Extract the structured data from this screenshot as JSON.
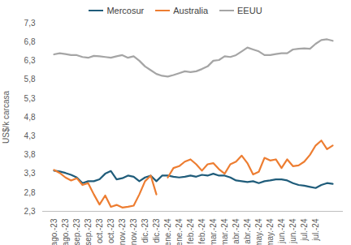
{
  "chart_data": {
    "type": "line",
    "ylabel": "US$/k carcasa",
    "legend": "top",
    "grid": false,
    "categories": [
      "ago.-23",
      null,
      "ago.-23",
      null,
      "sep.-23",
      null,
      "sep.-23",
      null,
      "oct.-23",
      null,
      "oct.-23",
      null,
      "nov.-23",
      null,
      "nov.-23",
      null,
      "dic.-23",
      null,
      "dic.-23",
      null,
      "ene.-24",
      null,
      "ene.-24",
      null,
      "feb.-24",
      null,
      "feb.-24",
      null,
      "mar.-24",
      null,
      "mar.-24",
      null,
      "abr.-24",
      null,
      "abr.-24",
      null,
      "may.-24",
      null,
      "may.-24",
      null,
      "jun.-24",
      null,
      "jun.-24",
      null,
      "jul.-24",
      null,
      "jul.-24",
      null,
      null,
      null
    ],
    "ylim": [
      2.3,
      7.3
    ],
    "yticks": [
      {
        "value": 2.3,
        "label": "2,3"
      },
      {
        "value": 2.8,
        "label": "2,8"
      },
      {
        "value": 3.3,
        "label": "3,3"
      },
      {
        "value": 3.8,
        "label": "3,8"
      },
      {
        "value": 4.3,
        "label": "4,3"
      },
      {
        "value": 4.8,
        "label": "4,8"
      },
      {
        "value": 5.3,
        "label": "5,3"
      },
      {
        "value": 5.8,
        "label": "5,8"
      },
      {
        "value": 6.3,
        "label": "6,3"
      },
      {
        "value": 6.8,
        "label": "6,8"
      },
      {
        "value": 7.3,
        "label": "7,3"
      }
    ],
    "series": [
      {
        "name": "Mercosur",
        "color": "#1f5c7a",
        "values": [
          3.38,
          3.36,
          3.32,
          3.27,
          3.2,
          3.05,
          3.1,
          3.1,
          3.15,
          3.3,
          3.37,
          3.15,
          3.18,
          3.25,
          3.22,
          3.1,
          3.2,
          3.25,
          3.1,
          3.25,
          3.25,
          3.22,
          3.2,
          3.22,
          3.25,
          3.22,
          3.27,
          3.25,
          3.3,
          3.25,
          3.25,
          3.2,
          3.12,
          3.1,
          3.08,
          3.1,
          3.05,
          3.1,
          3.12,
          3.15,
          3.15,
          3.12,
          3.05,
          3.0,
          2.98,
          2.95,
          2.92,
          3.0,
          3.05,
          3.03
        ]
      },
      {
        "name": "Australia",
        "color": "#ed7d31",
        "values": [
          3.4,
          3.32,
          3.2,
          3.12,
          3.18,
          3.0,
          3.05,
          2.75,
          2.48,
          2.72,
          2.42,
          2.47,
          2.4,
          2.42,
          2.45,
          2.75,
          3.1,
          3.25,
          2.75,
          null,
          3.2,
          3.45,
          3.5,
          3.62,
          3.68,
          3.55,
          3.38,
          3.55,
          3.58,
          3.42,
          3.3,
          3.55,
          3.62,
          3.78,
          3.58,
          3.28,
          3.35,
          3.72,
          3.65,
          3.68,
          3.45,
          3.68,
          3.5,
          3.52,
          3.62,
          3.8,
          4.05,
          4.18,
          3.95,
          4.05
        ]
      },
      {
        "name": "EEUU",
        "color": "#a5a5a5",
        "values": [
          6.47,
          6.5,
          6.48,
          6.45,
          6.45,
          6.4,
          6.38,
          6.43,
          6.42,
          6.4,
          6.38,
          6.42,
          6.45,
          6.38,
          6.42,
          6.3,
          6.15,
          6.05,
          5.95,
          5.9,
          5.88,
          5.92,
          5.97,
          6.02,
          6.0,
          6.02,
          6.08,
          6.15,
          6.3,
          6.32,
          6.42,
          6.4,
          6.45,
          6.55,
          6.65,
          6.6,
          6.55,
          6.45,
          6.45,
          6.48,
          6.5,
          6.5,
          6.6,
          6.62,
          6.63,
          6.62,
          6.75,
          6.85,
          6.87,
          6.83
        ]
      }
    ]
  }
}
